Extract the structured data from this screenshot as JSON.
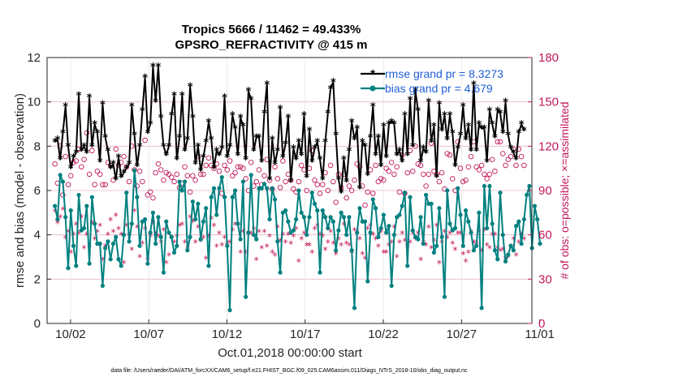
{
  "chart_data": {
    "type": "line",
    "title": "Tropics 5666 / 11462 = 49.433%",
    "subtitle": "GPSRO_REFRACTIVITY @ 415 m",
    "xlabel": "Oct.01,2018 00:00:00 start",
    "ylabel": "rmse and bias (model - observation)",
    "y2label": "# of obs: o=possible; ×=assimilated",
    "footnote": "data file: /Users/raeder/DAI/ATM_forcXX/CAM6_setup/f.e21.FHIST_BGC.f09_025.CAM6assim.011/Diags_NTrS_2018-10/obs_diag_output.nc",
    "xlim": [
      0.5,
      31.5
    ],
    "ylim": [
      0,
      12
    ],
    "y2lim": [
      0,
      180
    ],
    "x_tick_values": [
      2,
      7,
      12,
      17,
      22,
      27,
      32
    ],
    "x_tick_labels": [
      "10/02",
      "10/07",
      "10/12",
      "10/17",
      "10/22",
      "10/27",
      "11/01"
    ],
    "y_ticks": [
      0,
      2,
      4,
      6,
      8,
      10,
      12
    ],
    "y2_ticks": [
      0,
      30,
      60,
      90,
      120,
      150,
      180
    ],
    "legend_position": "top-right",
    "colors": {
      "rmse": "#000000",
      "bias": "#008080",
      "obs": "#c2185b",
      "grid": "#e6b3c8",
      "legend_text": "#1f5fd6"
    },
    "series": [
      {
        "name": "rmse grand pr = 8.3273",
        "axis": "left",
        "values": [
          8.2,
          8.3,
          7.4,
          8.6,
          9.8,
          8.0,
          7.0,
          7.5,
          7.7,
          10.3,
          7.8,
          8.0,
          7.7,
          10.2,
          8.0,
          9.0,
          8.6,
          7.3,
          9.9,
          8.4,
          7.8,
          7.0,
          7.2,
          6.5,
          7.5,
          6.6,
          6.8,
          7.0,
          7.2,
          9.8,
          8.5,
          7.1,
          8.0,
          9.6,
          11.1,
          8.6,
          9.0,
          11.6,
          10.0,
          11.6,
          9.3,
          8.0,
          7.6,
          8.0,
          9.4,
          10.3,
          7.4,
          8.4,
          10.3,
          7.8,
          8.3,
          10.7,
          9.3,
          7.2,
          8.0,
          6.9,
          7.5,
          8.2,
          9.1,
          8.3,
          7.0,
          7.8,
          7.6,
          7.9,
          10.2,
          7.5,
          8.0,
          9.4,
          8.8,
          7.6,
          9.3,
          8.9,
          7.4,
          10.5,
          10.1,
          7.8,
          8.4,
          8.4,
          7.3,
          9.5,
          10.8,
          6.5,
          8.3,
          7.2,
          7.8,
          9.7,
          7.5,
          8.1,
          9.3,
          6.4,
          7.9,
          7.4,
          8.2,
          7.6,
          9.4,
          6.6,
          8.7,
          7.3,
          7.9,
          8.2,
          7.4,
          6.5,
          8.2,
          9.5,
          10.6,
          10.9,
          8.5,
          6.5,
          5.9,
          7.4,
          6.4,
          7.8,
          9.1,
          8.3,
          8.8,
          6.1,
          8.2,
          8.0,
          6.7,
          8.4,
          9.8,
          7.6,
          8.4,
          7.1,
          8.9,
          7.5,
          9.0,
          9.1,
          9.0,
          7.6,
          7.8,
          7.3,
          9.4,
          7.6,
          10.1,
          8.0,
          10.5,
          9.6,
          7.3,
          7.9,
          7.7,
          10.0,
          8.2,
          8.9,
          6.6,
          9.9,
          8.7,
          9.4,
          8.3,
          9.4,
          8.6,
          7.1,
          7.9,
          8.5,
          9.8,
          8.3,
          8.9,
          7.8,
          10.8,
          7.8,
          9.0,
          8.8,
          8.8,
          7.3,
          9.6,
          9.0,
          8.4,
          9.6,
          9.5,
          8.6,
          10.0,
          8.5,
          7.9,
          7.7,
          7.4,
          8.6,
          9.0,
          8.7
        ]
      },
      {
        "name": "bias grand pr = 4.679",
        "axis": "left",
        "values": [
          5.3,
          4.7,
          6.7,
          6.4,
          4.8,
          2.5,
          5.1,
          3.5,
          2.6,
          5.8,
          4.2,
          4.3,
          5.3,
          2.7,
          5.7,
          4.5,
          3.6,
          3.6,
          1.7,
          3.4,
          3.7,
          2.9,
          3.6,
          3.9,
          2.9,
          2.6,
          4.0,
          5.9,
          3.7,
          4.5,
          6.9,
          5.7,
          3.5,
          4.6,
          4.7,
          2.7,
          4.1,
          5.0,
          3.6,
          4.8,
          3.9,
          2.3,
          4.6,
          4.1,
          3.9,
          3.2,
          3.5,
          6.4,
          6.0,
          6.4,
          3.3,
          3.9,
          5.5,
          4.7,
          5.4,
          3.8,
          4.6,
          5.2,
          2.6,
          5.7,
          6.1,
          4.9,
          6.1,
          6.6,
          5.7,
          3.5,
          0.6,
          5.7,
          6.0,
          4.5,
          3.8,
          6.4,
          1.2,
          4.1,
          6.7,
          4.0,
          3.8,
          6.1,
          6.1,
          6.3,
          6.1,
          4.7,
          6.1,
          5.6,
          3.7,
          2.3,
          5.0,
          5.1,
          4.6,
          4.1,
          4.2,
          4.7,
          6.0,
          5.0,
          4.8,
          4.0,
          4.8,
          5.9,
          5.4,
          5.1,
          2.3,
          5.1,
          4.8,
          4.3,
          4.8,
          4.6,
          3.3,
          4.2,
          5.0,
          4.8,
          4.0,
          4.8,
          3.3,
          0.7,
          4.1,
          5.2,
          4.6,
          4.6,
          1.9,
          4.1,
          5.6,
          5.2,
          3.9,
          4.3,
          4.9,
          4.1,
          4.4,
          1.7,
          4.0,
          4.8,
          4.9,
          5.3,
          5.9,
          2.6,
          5.7,
          4.2,
          3.9,
          3.8,
          4.8,
          3.6,
          5.8,
          5.4,
          5.4,
          3.2,
          3.5,
          5.2,
          3.9,
          1.2,
          6.0,
          4.5,
          4.2,
          4.3,
          6.1,
          4.9,
          3.5,
          5.1,
          4.6,
          4.1,
          3.3,
          3.5,
          5.0,
          0.7,
          6.2,
          4.3,
          6.2,
          4.5,
          3.3,
          2.9,
          5.9,
          4.0,
          2.8,
          3.1,
          3.5,
          3.3,
          4.4,
          4.6,
          3.6,
          4.7,
          5.8,
          6.2,
          3.4,
          5.3,
          4.7,
          3.6
        ]
      },
      {
        "name": "possible",
        "axis": "right",
        "marker": "o",
        "values": [
          108,
          95,
          120,
          87,
          113,
          94,
          100,
          109,
          110,
          118,
          106,
          111,
          129,
          101,
          117,
          94,
          103,
          101,
          94,
          94,
          109,
          107,
          97,
          118,
          107,
          109,
          113,
          106,
          96,
          120,
          104,
          93,
          103,
          96,
          124,
          87,
          89,
          85,
          102,
          108,
          104,
          97,
          102,
          101,
          99,
          96,
          101,
          92,
          95,
          106,
          100,
          89,
          100,
          97,
          113,
          101,
          101,
          107,
          112,
          107,
          105,
          108,
          103,
          88,
          107,
          104,
          110,
          100,
          102,
          106,
          106,
          105,
          98,
          90,
          109,
          93,
          96,
          104,
          94,
          100,
          111,
          97,
          91,
          106,
          98,
          92,
          110,
          96,
          101,
          97,
          91,
          89,
          96,
          107,
          104,
          90,
          105,
          117,
          97,
          94,
          88,
          94,
          102,
          90,
          107,
          96,
          82,
          101,
          92,
          101,
          85,
          93,
          90,
          97,
          108,
          106,
          93,
          80,
          89,
          104,
          88,
          107,
          96,
          98,
          97,
          105,
          103,
          109,
          101,
          106,
          89,
          114,
          88,
          102,
          117,
          103,
          120,
          108,
          107,
          101,
          93,
          101,
          122,
          103,
          101,
          96,
          102,
          91,
          115,
          114,
          98,
          90,
          123,
          105,
          96,
          97,
          106,
          113,
          123,
          106,
          104,
          107,
          101,
          98,
          101,
          111,
          103,
          123,
          123,
          115,
          107,
          111,
          113,
          118,
          107,
          118,
          113,
          107
        ]
      },
      {
        "name": "assimilated",
        "axis": "right",
        "marker": "*",
        "values": [
          76,
          68,
          72,
          77,
          58,
          62,
          48,
          60,
          67,
          61,
          72,
          51,
          60,
          52,
          68,
          57,
          62,
          66,
          43,
          52,
          60,
          70,
          62,
          73,
          64,
          60,
          41,
          66,
          60,
          50,
          76,
          65,
          45,
          54,
          64,
          43,
          59,
          68,
          60,
          59,
          55,
          63,
          41,
          46,
          58,
          55,
          59,
          66,
          67,
          55,
          51,
          72,
          69,
          55,
          65,
          56,
          58,
          44,
          59,
          71,
          66,
          52,
          61,
          53,
          58,
          54,
          55,
          63,
          67,
          67,
          48,
          62,
          48,
          61,
          61,
          64,
          43,
          62,
          51,
          62,
          52,
          59,
          48,
          46,
          65,
          56,
          60,
          55,
          60,
          54,
          59,
          64,
          42,
          57,
          61,
          53,
          53,
          48,
          64,
          66,
          60,
          59,
          50,
          55,
          62,
          54,
          47,
          57,
          53,
          67,
          54,
          53,
          48,
          63,
          62,
          57,
          47,
          44,
          64,
          66,
          60,
          57,
          52,
          62,
          48,
          48,
          53,
          55,
          65,
          45,
          55,
          61,
          56,
          52,
          55,
          61,
          57,
          61,
          43,
          55,
          53,
          65,
          51,
          56,
          66,
          41,
          55,
          62,
          58,
          61,
          54,
          50,
          61,
          61,
          47,
          42,
          48,
          62,
          55,
          54,
          62,
          49,
          63,
          53,
          51,
          60,
          60,
          51,
          49,
          50,
          44,
          45,
          52,
          57,
          46,
          55,
          60,
          57
        ]
      }
    ]
  }
}
